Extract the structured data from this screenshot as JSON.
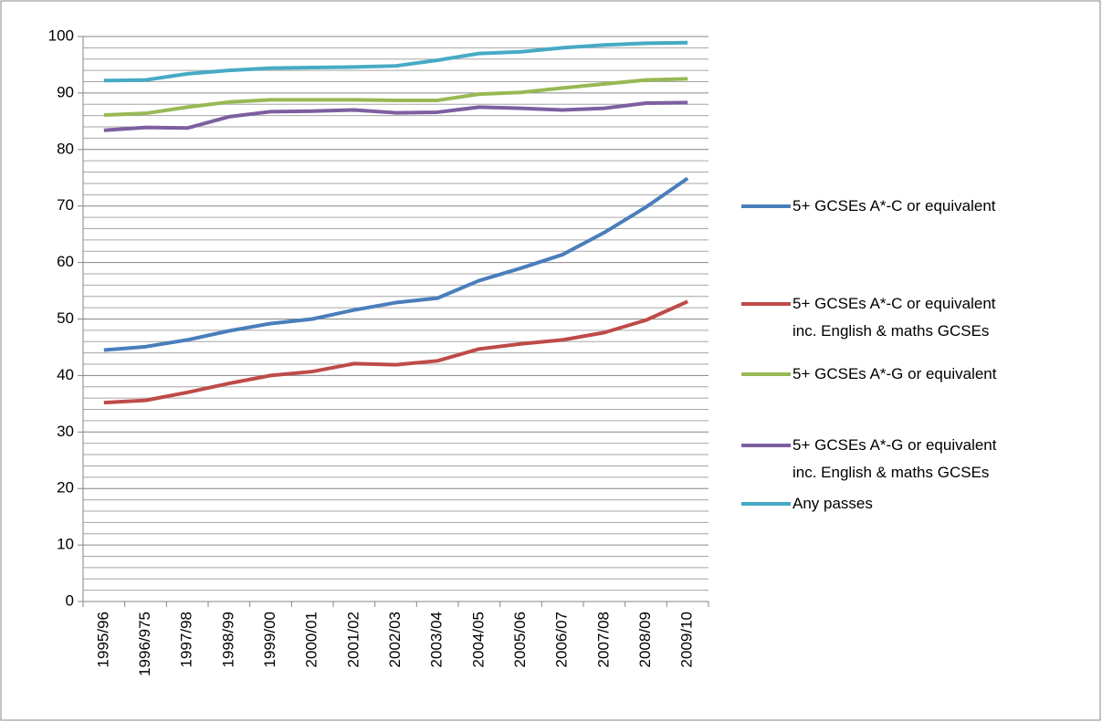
{
  "chart_data": {
    "type": "line",
    "categories": [
      "1995/96",
      "1996/975",
      "1997/98",
      "1998/99",
      "1999/00",
      "2000/01",
      "2001/02",
      "2002/03",
      "2003/04",
      "2004/05",
      "2005/06",
      "2006/07",
      "2007/08",
      "2008/09",
      "2009/10"
    ],
    "series": [
      {
        "name": "5+ GCSEs A*-C or equivalent",
        "color": "#4a7ebb",
        "values": [
          44.5,
          45.1,
          46.3,
          47.9,
          49.2,
          50.0,
          51.6,
          52.9,
          53.7,
          56.8,
          59.0,
          61.4,
          65.3,
          69.8,
          74.9
        ]
      },
      {
        "name": "5+ GCSEs A*-C or equivalent\ninc. English & maths GCSEs",
        "color": "#be4b48",
        "values": [
          35.2,
          35.6,
          37.0,
          38.6,
          40.0,
          40.7,
          42.1,
          41.9,
          42.6,
          44.7,
          45.6,
          46.3,
          47.6,
          49.8,
          53.1
        ]
      },
      {
        "name": "5+ GCSEs A*-G or equivalent",
        "color": "#98b954",
        "values": [
          86.1,
          86.4,
          87.5,
          88.4,
          88.8,
          88.8,
          88.8,
          88.7,
          88.7,
          89.8,
          90.1,
          90.9,
          91.6,
          92.3,
          92.5
        ]
      },
      {
        "name": "5+ GCSEs A*-G or equivalent\ninc. English & maths GCSEs",
        "color": "#7d5fa0",
        "values": [
          83.4,
          83.9,
          83.8,
          85.8,
          86.7,
          86.8,
          87.0,
          86.5,
          86.6,
          87.5,
          87.3,
          87.0,
          87.3,
          88.2,
          88.3
        ]
      },
      {
        "name": "Any passes",
        "color": "#46aac5",
        "values": [
          92.2,
          92.3,
          93.4,
          94.0,
          94.4,
          94.5,
          94.6,
          94.8,
          95.8,
          97.0,
          97.3,
          98.0,
          98.5,
          98.8,
          98.9
        ]
      }
    ],
    "ylim": [
      0,
      100
    ],
    "yticks": [
      0,
      10,
      20,
      30,
      40,
      50,
      60,
      70,
      80,
      90,
      100
    ],
    "yminorticks": [
      2,
      4,
      6,
      8,
      12,
      14,
      16,
      18,
      22,
      24,
      26,
      28,
      32,
      34,
      36,
      38,
      42,
      44,
      46,
      48,
      52,
      54,
      56,
      58,
      62,
      64,
      66,
      68,
      72,
      74,
      76,
      78,
      82,
      84,
      86,
      88,
      92,
      94,
      96,
      98
    ],
    "grid": true,
    "legend": "right"
  }
}
